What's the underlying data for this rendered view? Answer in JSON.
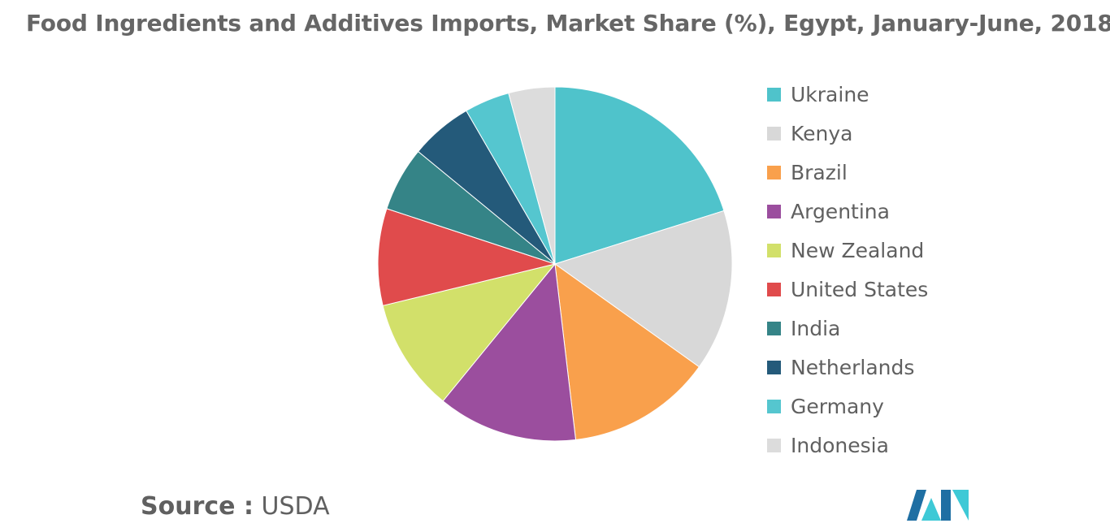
{
  "title": "Food Ingredients and Additives Imports, Market Share (%), Egypt, January-June, 2018",
  "source": {
    "label": "Source :",
    "value": "USDA"
  },
  "logo": {
    "name": "mordor-intelligence-logo",
    "colors": [
      "#1f6fa3",
      "#3ec9d6"
    ]
  },
  "chart_data": {
    "type": "pie",
    "title": "Food Ingredients and Additives Imports, Market Share (%), Egypt, January-June, 2018",
    "legend_position": "right",
    "unit": "%",
    "categories": [
      "Ukraine",
      "Kenya",
      "Brazil",
      "Argentina",
      "New Zealand",
      "United States",
      "India",
      "Netherlands",
      "Germany",
      "Indonesia"
    ],
    "values": [
      20.5,
      15.0,
      13.5,
      13.0,
      10.5,
      9.0,
      6.0,
      5.8,
      4.2,
      4.3
    ],
    "colors": [
      "#4fc3cb",
      "#d8d8d8",
      "#f9a04c",
      "#9b4e9e",
      "#d2e06a",
      "#e04b4c",
      "#358487",
      "#245a7a",
      "#55c6cf",
      "#dcdcdc"
    ]
  }
}
